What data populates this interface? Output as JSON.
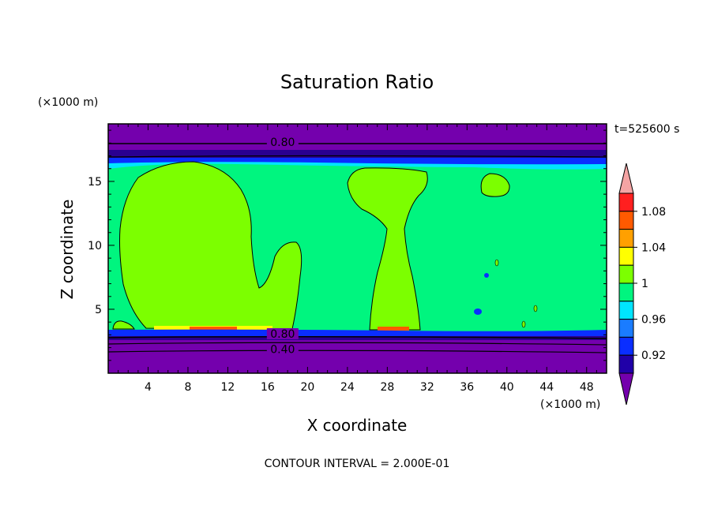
{
  "chart_data": {
    "type": "heatmap",
    "title": "Saturation Ratio",
    "xlabel": "X coordinate",
    "ylabel": "Z coordinate",
    "x_unit": "(×1000 m)",
    "y_unit": "(×1000 m)",
    "xlim": [
      0,
      50
    ],
    "ylim": [
      0,
      19.5
    ],
    "x_ticks": [
      4,
      8,
      12,
      16,
      20,
      24,
      28,
      32,
      36,
      40,
      44,
      48
    ],
    "y_ticks": [
      5,
      10,
      15
    ],
    "time_label": "t=525600 s",
    "footer": "CONTOUR INTERVAL = 2.000E-01",
    "contour_labels": [
      {
        "text": "0.80",
        "x": 17.5,
        "y": 17.9
      },
      {
        "text": "0.80",
        "x": 17.5,
        "y": 2.9
      },
      {
        "text": "0.40",
        "x": 17.5,
        "y": 1.7
      }
    ],
    "colorbar": {
      "tick_labels": [
        "1.08",
        "1.04",
        "1",
        "0.96",
        "0.92"
      ],
      "levels": [
        0.92,
        0.94,
        0.96,
        0.98,
        1.0,
        1.02,
        1.04,
        1.06,
        1.08,
        1.1
      ],
      "colors": [
        "#7400ad",
        "#2000a8",
        "#0a2eff",
        "#1a7cff",
        "#00e5ff",
        "#00f57f",
        "#7cff00",
        "#ffff00",
        "#ffa000",
        "#ff5a00",
        "#ff1f1f",
        "#f4a4a4"
      ]
    },
    "colors": {
      "background_purple": "#7400ad",
      "field_green": "#00f57f",
      "saturated_green": "#7cff00"
    }
  }
}
